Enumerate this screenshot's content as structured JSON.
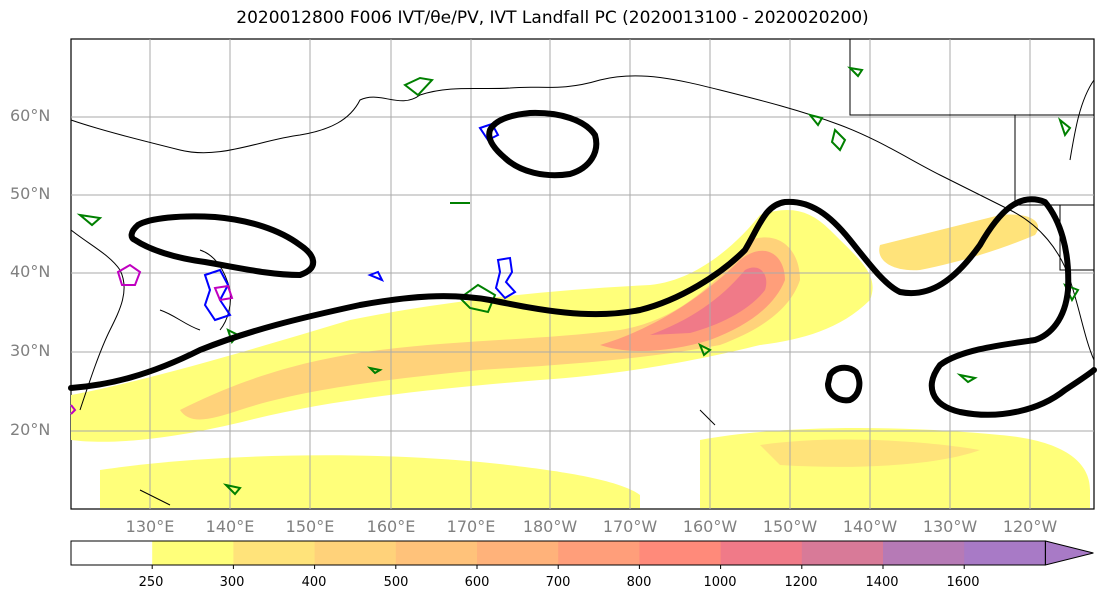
{
  "title": "2020012800 F006 IVT/θe/PV, IVT Landfall PC (2020013100 - 2020020200)",
  "lat_labels": [
    "60°N",
    "50°N",
    "40°N",
    "30°N",
    "20°N"
  ],
  "lon_labels": [
    "130°E",
    "140°E",
    "150°E",
    "160°E",
    "170°E",
    "180°W",
    "170°W",
    "160°W",
    "150°W",
    "140°W",
    "130°W",
    "120°W"
  ],
  "colorbar": {
    "ticks": [
      "250",
      "300",
      "400",
      "500",
      "600",
      "700",
      "800",
      "1000",
      "1200",
      "1400",
      "1600"
    ],
    "colors": [
      "#ffffff",
      "#ffff7a",
      "#ffe37a",
      "#ffd27a",
      "#ffc27a",
      "#ffb27a",
      "#ff9e7a",
      "#ff8a7a",
      "#f07a88",
      "#d87a98",
      "#b67ab6",
      "#a87ac6"
    ]
  },
  "colors": {
    "landfall_contour": "#000000",
    "theta_e_contour": "#008000",
    "pv_contour_blue": "#0000ff",
    "pv_contour_magenta": "#c000c0",
    "grid": "#aaaaaa"
  }
}
